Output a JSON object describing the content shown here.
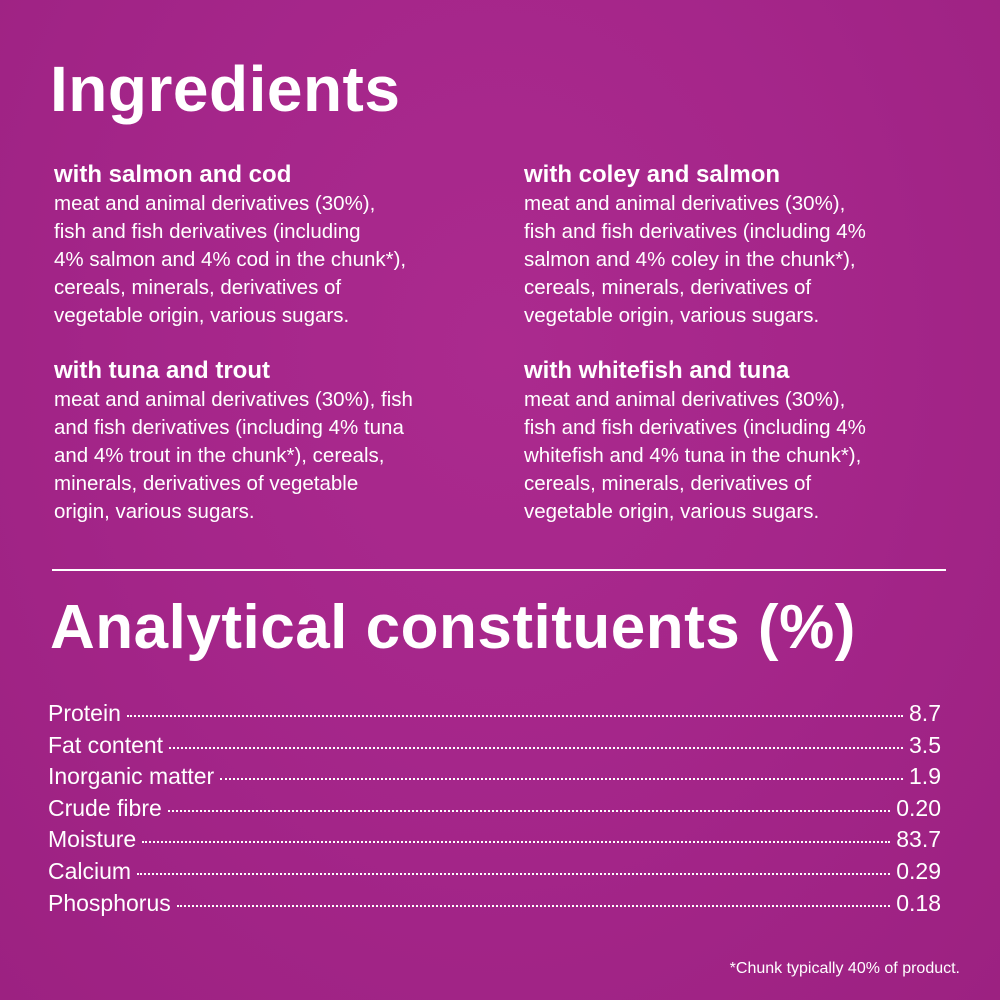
{
  "ingredients": {
    "title": "Ingredients",
    "varieties": [
      {
        "name": "with salmon and cod",
        "lines": [
          "meat and animal derivatives (30%),",
          "fish and fish derivatives (including",
          "4% salmon and 4% cod in the chunk*),",
          "cereals, minerals, derivatives of",
          "vegetable origin, various sugars."
        ]
      },
      {
        "name": "with coley and salmon",
        "lines": [
          "meat and animal derivatives (30%),",
          "fish and fish derivatives (including 4%",
          "salmon and 4% coley in the chunk*),",
          "cereals, minerals, derivatives of",
          "vegetable origin, various sugars."
        ]
      },
      {
        "name": "with tuna and trout",
        "lines": [
          "meat and animal derivatives (30%), fish",
          "and fish derivatives (including 4% tuna",
          "and 4% trout in the chunk*), cereals,",
          "minerals, derivatives of vegetable",
          "origin, various sugars."
        ]
      },
      {
        "name": "with whitefish and tuna",
        "lines": [
          "meat and animal derivatives (30%),",
          "fish and fish derivatives (including 4%",
          "whitefish and 4% tuna in the chunk*),",
          "cereals, minerals, derivatives of",
          "vegetable origin, various sugars."
        ]
      }
    ]
  },
  "analytical": {
    "title": "Analytical constituents (%)",
    "rows": [
      {
        "label": "Protein",
        "value": "8.7"
      },
      {
        "label": "Fat content",
        "value": "3.5"
      },
      {
        "label": "Inorganic matter",
        "value": "1.9"
      },
      {
        "label": "Crude fibre",
        "value": "0.20"
      },
      {
        "label": "Moisture",
        "value": "83.7"
      },
      {
        "label": "Calcium",
        "value": "0.29"
      },
      {
        "label": "Phosphorus",
        "value": "0.18"
      }
    ]
  },
  "footnote": "*Chunk typically 40% of product.",
  "colors": {
    "background": "#a5268a",
    "text": "#ffffff"
  }
}
